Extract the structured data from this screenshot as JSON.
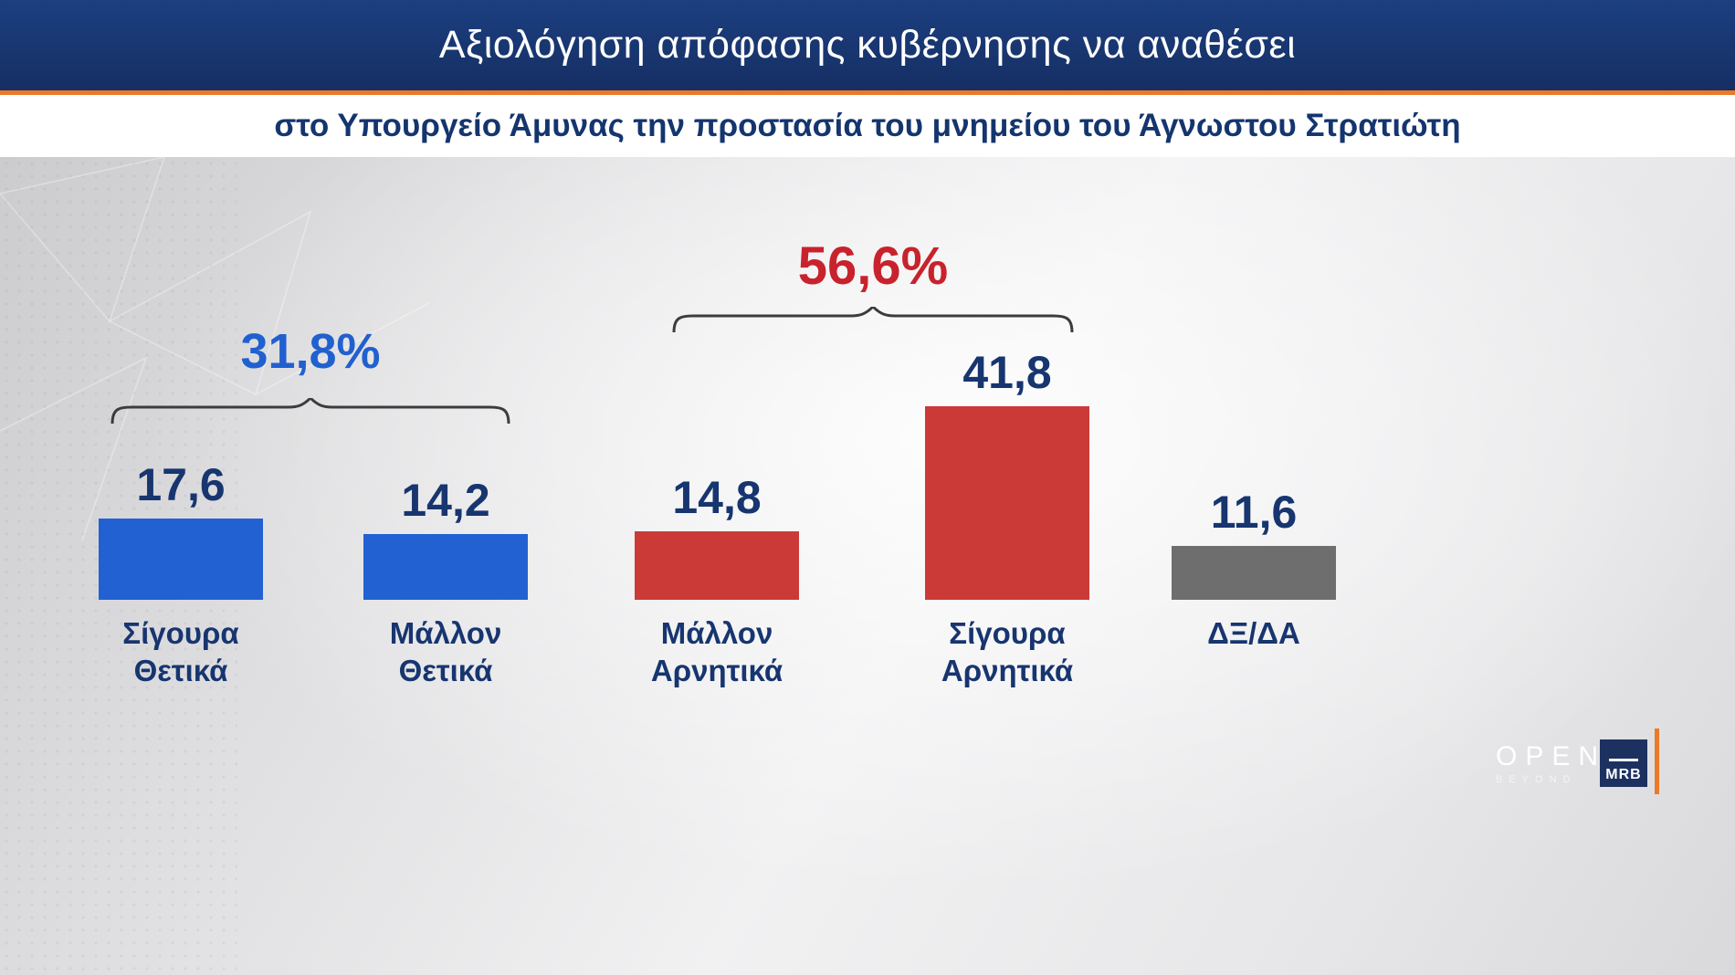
{
  "header": {
    "title": "Αξιολόγηση απόφασης κυβέρνησης να αναθέσει",
    "subtitle": "στο Υπουργείο Άμυνας την προστασία του μνημείου του Άγνωστου Στρατιώτη"
  },
  "chart_data": {
    "type": "bar",
    "title": "Αξιολόγηση απόφασης κυβέρνησης να αναθέσει στο Υπουργείο Άμυνας την προστασία του μνημείου του Άγνωστου Στρατιώτη",
    "categories": [
      "Σίγουρα\nΘετικά",
      "Μάλλον\nΘετικά",
      "Μάλλον\nΑρνητικά",
      "Σίγουρα\nΑρνητικά",
      "ΔΞ/ΔΑ"
    ],
    "values": [
      17.6,
      14.2,
      14.8,
      41.8,
      11.6
    ],
    "value_labels": [
      "17,6",
      "14,2",
      "14,8",
      "41,8",
      "11,6"
    ],
    "bar_colors": [
      "#2261d2",
      "#2261d2",
      "#cb3a37",
      "#cb3a37",
      "#6e6e6e"
    ],
    "groups": [
      {
        "label": "31,8%",
        "color": "#2160cf",
        "bars": [
          0,
          1
        ]
      },
      {
        "label": "56,6%",
        "color": "#c8222d",
        "bars": [
          2,
          3
        ]
      }
    ],
    "xlabel": "",
    "ylabel": "",
    "ylim": [
      0,
      45
    ],
    "grid": false,
    "legend": "none"
  },
  "footer": {
    "open_logo": "OPEN",
    "open_sub": "BEYOND",
    "mrb_logo": "MRB"
  },
  "colors": {
    "banner_navy": "#16356d",
    "accent_orange": "#e87a2a",
    "text_navy": "#17356f",
    "bar_blue": "#2261d2",
    "bar_red": "#cb3a37",
    "bar_gray": "#6e6e6e",
    "group_blue": "#2160cf",
    "group_red": "#c8222d"
  }
}
